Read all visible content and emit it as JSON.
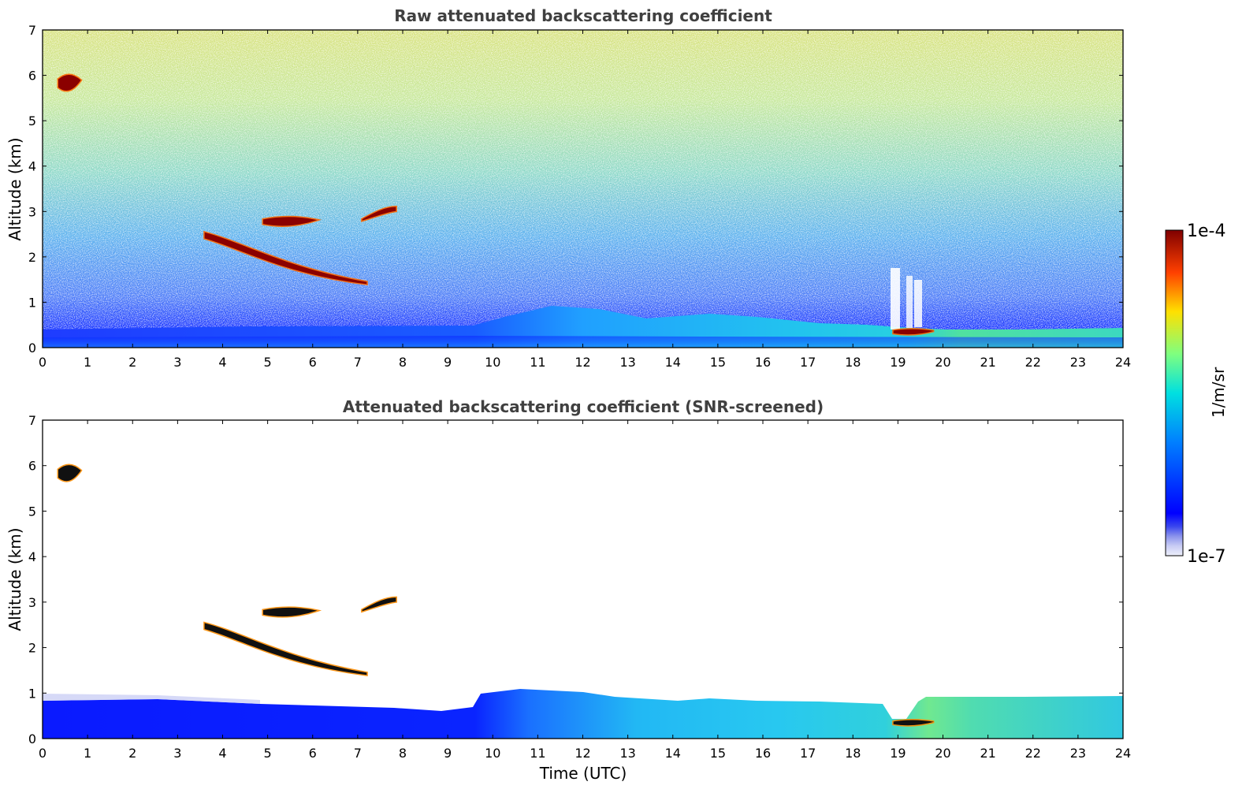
{
  "chart_data": [
    {
      "type": "heatmap",
      "title": "Raw attenuated backscattering coefficient",
      "xlabel": "",
      "ylabel": "Altitude (km)",
      "xlim": [
        0,
        24
      ],
      "ylim": [
        0,
        7
      ],
      "xticks": [
        0,
        1,
        2,
        3,
        4,
        5,
        6,
        7,
        8,
        9,
        10,
        11,
        12,
        13,
        14,
        15,
        16,
        17,
        18,
        19,
        20,
        21,
        22,
        23,
        24
      ],
      "yticks": [
        0,
        1,
        2,
        3,
        4,
        5,
        6,
        7
      ],
      "background_field": {
        "noise_levels_by_altitude_km": [
          {
            "z": 0.0,
            "value": "1e-6"
          },
          {
            "z": 0.5,
            "value": "4e-7"
          },
          {
            "z": 2.0,
            "value": "2e-6"
          },
          {
            "z": 4.0,
            "value": "6e-6"
          },
          {
            "z": 7.0,
            "value": "2e-5"
          }
        ],
        "boundary_layer_top_km": [
          {
            "t": 0,
            "z": 0.4
          },
          {
            "t": 5,
            "z": 0.45
          },
          {
            "t": 10,
            "z": 0.5
          },
          {
            "t": 11.5,
            "z": 0.9
          },
          {
            "t": 13,
            "z": 0.6
          },
          {
            "t": 15,
            "z": 0.75
          },
          {
            "t": 18,
            "z": 0.5
          },
          {
            "t": 19,
            "z": 0.45
          },
          {
            "t": 24,
            "z": 0.4
          }
        ]
      },
      "features": [
        {
          "name": "cloud",
          "t": [
            0.35,
            0.85
          ],
          "z": [
            5.6,
            6.05
          ],
          "value": "1e-4"
        },
        {
          "name": "cloud",
          "t": [
            3.6,
            7.2
          ],
          "z": [
            1.4,
            2.6
          ],
          "value": "1e-4"
        },
        {
          "name": "cloud",
          "t": [
            4.9,
            6.1
          ],
          "z": [
            2.65,
            2.9
          ],
          "value": "1e-4"
        },
        {
          "name": "cloud",
          "t": [
            7.1,
            7.85
          ],
          "z": [
            2.8,
            3.1
          ],
          "value": "1e-4"
        },
        {
          "name": "cloud",
          "t": [
            18.9,
            19.8
          ],
          "z": [
            0.27,
            0.42
          ],
          "value": "1e-4"
        }
      ]
    },
    {
      "type": "heatmap",
      "title": "Attenuated backscattering coefficient (SNR-screened)",
      "xlabel": "Time (UTC)",
      "ylabel": "Altitude (km)",
      "xlim": [
        0,
        24
      ],
      "ylim": [
        0,
        7
      ],
      "xticks": [
        0,
        1,
        2,
        3,
        4,
        5,
        6,
        7,
        8,
        9,
        10,
        11,
        12,
        13,
        14,
        15,
        16,
        17,
        18,
        19,
        20,
        21,
        22,
        23,
        24
      ],
      "yticks": [
        0,
        1,
        2,
        3,
        4,
        5,
        6,
        7
      ],
      "screened_layer_top_km": [
        {
          "t": 0,
          "z": 0.85
        },
        {
          "t": 5,
          "z": 0.6
        },
        {
          "t": 9,
          "z": 0.55
        },
        {
          "t": 10,
          "z": 0.95
        },
        {
          "t": 12,
          "z": 1.0
        },
        {
          "t": 13,
          "z": 0.9
        },
        {
          "t": 16,
          "z": 0.8
        },
        {
          "t": 18.8,
          "z": 0.8
        },
        {
          "t": 19.2,
          "z": 0.45
        },
        {
          "t": 19.8,
          "z": 0.9
        },
        {
          "t": 24,
          "z": 0.9
        }
      ],
      "features": [
        {
          "name": "cloud",
          "t": [
            0.35,
            0.85
          ],
          "z": [
            5.6,
            6.05
          ],
          "value": "1e-4"
        },
        {
          "name": "cloud",
          "t": [
            3.6,
            7.2
          ],
          "z": [
            1.4,
            2.6
          ],
          "value": "1e-4"
        },
        {
          "name": "cloud",
          "t": [
            4.9,
            6.1
          ],
          "z": [
            2.65,
            2.9
          ],
          "value": "1e-4"
        },
        {
          "name": "cloud",
          "t": [
            7.1,
            7.85
          ],
          "z": [
            2.8,
            3.1
          ],
          "value": "1e-4"
        },
        {
          "name": "cloud",
          "t": [
            18.9,
            19.8
          ],
          "z": [
            0.27,
            0.42
          ],
          "value": "1e-4"
        }
      ]
    }
  ],
  "colorbar": {
    "label": "1/m/sr",
    "max_label": "1e-4",
    "min_label": "1e-7",
    "scale": "log",
    "colormap": "jet",
    "low_end_colors": [
      "#eef0fb",
      "#c8ccf4",
      "#9aa2ee",
      "#6c76ea",
      "#3a46ee",
      "#0000ff"
    ]
  }
}
